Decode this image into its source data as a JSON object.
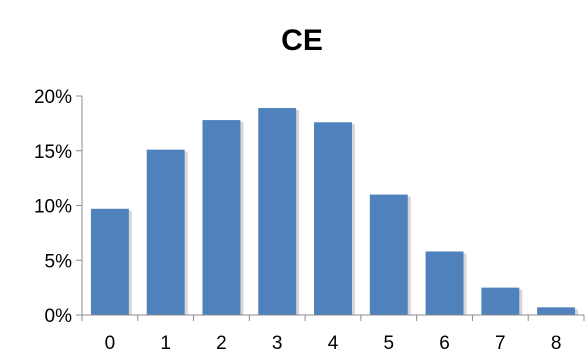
{
  "chart_data": {
    "type": "bar",
    "title": "CE",
    "categories": [
      "0",
      "1",
      "2",
      "3",
      "4",
      "5",
      "6",
      "7",
      "8"
    ],
    "values": [
      9.7,
      15.1,
      17.8,
      18.9,
      17.6,
      11.0,
      5.8,
      2.5,
      0.7
    ],
    "value_unit": "%",
    "xlabel": "",
    "ylabel": "",
    "ylim": [
      0,
      20
    ],
    "yticks": [
      "0%",
      "5%",
      "10%",
      "15%",
      "20%"
    ],
    "grid": false,
    "legend": "none",
    "bar_color": "#4f81bd"
  }
}
